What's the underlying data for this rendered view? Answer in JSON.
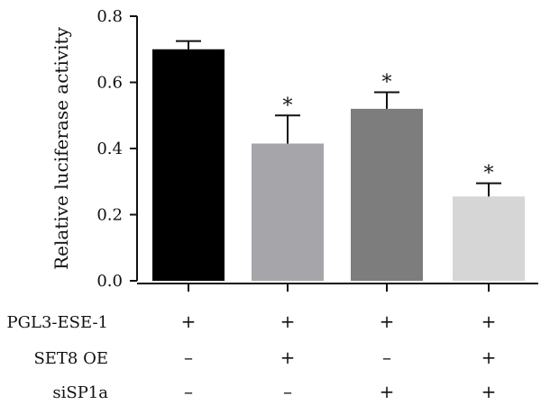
{
  "chart_data": {
    "type": "bar",
    "title": "",
    "xlabel": "",
    "ylabel": "Relative luciferase activity",
    "ylim": [
      0,
      0.8
    ],
    "yticks": [
      0.0,
      0.2,
      0.4,
      0.6,
      0.8
    ],
    "ytick_labels": [
      "0.0",
      "0.2",
      "0.4",
      "0.6",
      "0.8"
    ],
    "grid": false,
    "legend": "none",
    "bars": [
      {
        "value": 0.7,
        "error": 0.025,
        "color": "#000000",
        "significance": ""
      },
      {
        "value": 0.415,
        "error": 0.085,
        "color": "#a6a6aa",
        "significance": "*"
      },
      {
        "value": 0.52,
        "error": 0.05,
        "color": "#7d7d7d",
        "significance": "*"
      },
      {
        "value": 0.255,
        "error": 0.04,
        "color": "#d6d6d6",
        "significance": "*"
      }
    ],
    "conditions": [
      {
        "label": "PGL3-ESE-1",
        "signs": [
          "+",
          "+",
          "+",
          "+"
        ]
      },
      {
        "label": "SET8 OE",
        "signs": [
          "–",
          "+",
          "–",
          "+"
        ]
      },
      {
        "label": "siSP1a",
        "signs": [
          "–",
          "–",
          "+",
          "+"
        ]
      }
    ]
  }
}
